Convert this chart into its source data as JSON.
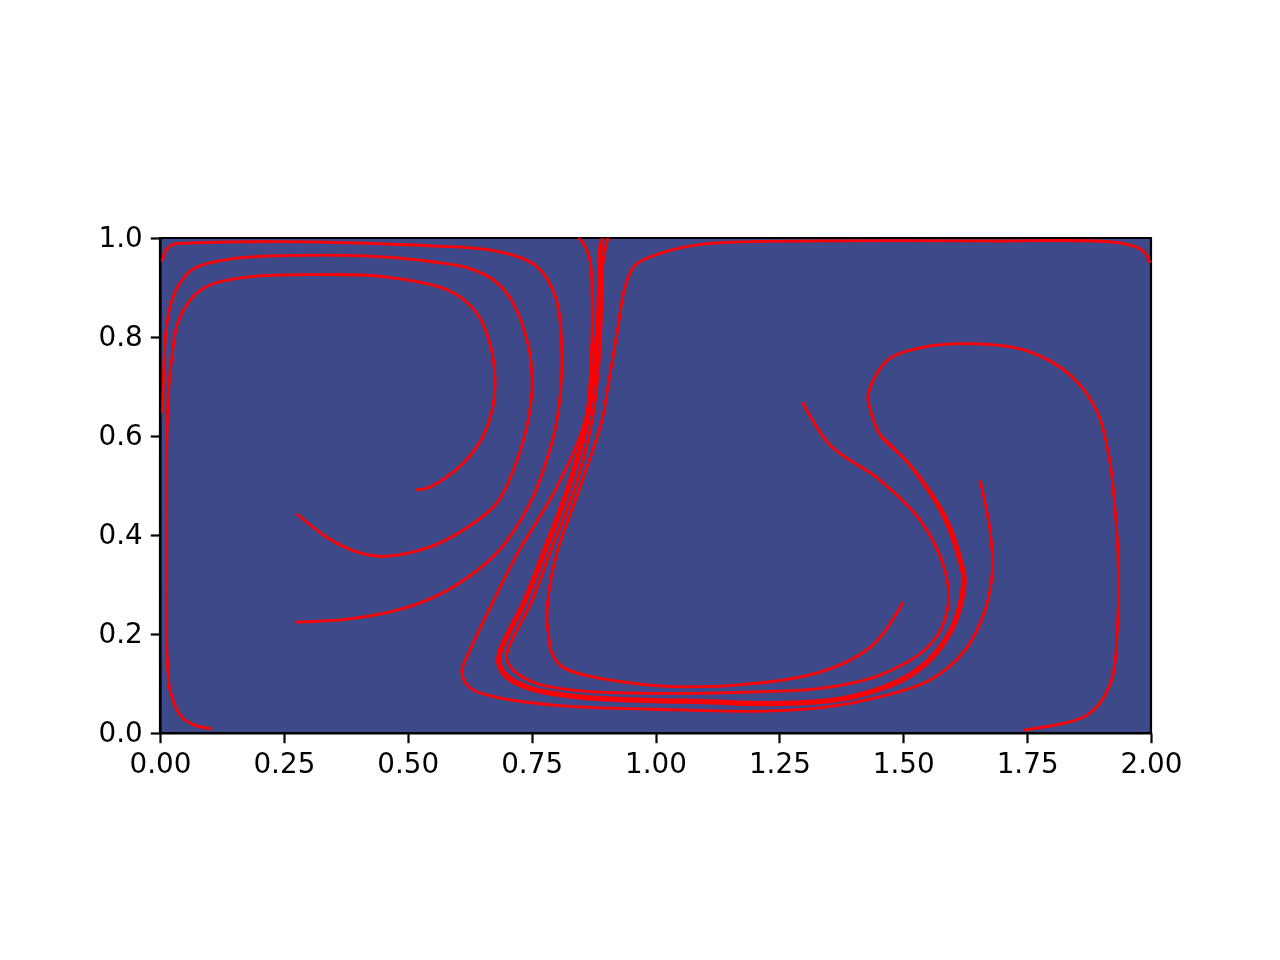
{
  "chart_data": {
    "type": "line",
    "xlim": [
      0,
      2
    ],
    "ylim": [
      0,
      1
    ],
    "xticks": [
      {
        "value": 0,
        "label": "0.00"
      },
      0.25,
      {
        "value": 0.5,
        "label": "0.50"
      },
      0.75,
      {
        "value": 1,
        "label": "1.00"
      },
      1.25,
      {
        "value": 1.5,
        "label": "1.50"
      },
      1.75,
      {
        "value": 2,
        "label": "2.00"
      }
    ],
    "yticks": [
      {
        "value": 0,
        "label": "0.0"
      },
      0.2,
      0.4,
      0.6,
      0.8,
      {
        "value": 1,
        "label": "1.0"
      }
    ],
    "grid": false,
    "line_style": "solid",
    "series": [
      {
        "color": "#ff0000",
        "x": [
          0.004,
          0.013,
          0.026,
          0.07,
          0.145,
          0.3,
          0.45,
          0.55,
          0.676,
          0.757,
          0.797,
          0.811,
          0.801,
          0.78,
          0.747,
          0.68,
          0.595,
          0.533,
          0.471,
          0.378,
          0.273
        ],
        "values": [
          0.953,
          0.977,
          0.987,
          0.99,
          0.992,
          0.992,
          0.988,
          0.984,
          0.974,
          0.945,
          0.885,
          0.764,
          0.632,
          0.55,
          0.465,
          0.364,
          0.297,
          0.266,
          0.246,
          0.23,
          0.224
        ]
      },
      {
        "color": "#ff0000",
        "x": [
          0.005,
          0.007,
          0.009,
          0.013,
          0.02,
          0.035,
          0.066,
          0.145,
          0.3,
          0.45,
          0.55,
          0.62,
          0.676,
          0.71,
          0.743,
          0.751,
          0.743,
          0.72,
          0.68,
          0.612,
          0.545,
          0.45,
          0.394,
          0.339,
          0.276
        ],
        "values": [
          0.646,
          0.72,
          0.768,
          0.82,
          0.86,
          0.9,
          0.937,
          0.958,
          0.965,
          0.962,
          0.952,
          0.94,
          0.913,
          0.873,
          0.784,
          0.703,
          0.632,
          0.55,
          0.465,
          0.41,
          0.376,
          0.357,
          0.367,
          0.394,
          0.443
        ]
      },
      {
        "color": "#ff0000",
        "x": [
          0.515,
          0.545,
          0.612,
          0.652,
          0.672,
          0.676,
          0.665,
          0.638,
          0.585,
          0.45,
          0.301,
          0.184,
          0.106,
          0.068,
          0.036,
          0.025,
          0.017,
          0.013,
          0.013,
          0.013,
          0.015,
          0.021,
          0.044,
          0.07,
          0.103
        ],
        "values": [
          0.491,
          0.497,
          0.545,
          0.6,
          0.66,
          0.717,
          0.79,
          0.85,
          0.893,
          0.922,
          0.926,
          0.922,
          0.907,
          0.883,
          0.829,
          0.768,
          0.689,
          0.533,
          0.35,
          0.222,
          0.14,
          0.083,
          0.032,
          0.016,
          0.009
        ]
      },
      {
        "color": "#ff0000",
        "x": [
          0.844,
          0.854,
          0.868,
          0.872,
          0.87,
          0.858,
          0.801,
          0.722,
          0.672,
          0.626,
          0.609,
          0.626,
          0.676,
          0.8,
          0.993,
          1.251,
          1.403,
          1.554,
          1.625,
          1.665,
          1.68,
          1.675,
          1.655
        ],
        "values": [
          1.0,
          0.99,
          0.954,
          0.885,
          0.752,
          0.632,
          0.497,
          0.364,
          0.265,
          0.168,
          0.123,
          0.091,
          0.073,
          0.056,
          0.048,
          0.045,
          0.062,
          0.107,
          0.168,
          0.248,
          0.329,
          0.41,
          0.511
        ]
      },
      {
        "color": "#ff0000",
        "x": [
          1.998,
          1.984,
          1.937,
          1.669,
          1.332,
          1.1,
          1.013,
          0.959,
          0.938,
          0.924,
          0.904,
          0.892,
          0.848,
          0.801,
          0.784,
          0.781,
          0.784,
          0.79,
          0.81,
          0.858,
          1.06,
          1.332,
          1.439,
          1.5
        ],
        "values": [
          0.95,
          0.974,
          0.99,
          0.994,
          0.994,
          0.988,
          0.97,
          0.945,
          0.899,
          0.818,
          0.7,
          0.632,
          0.497,
          0.364,
          0.28,
          0.228,
          0.2,
          0.164,
          0.135,
          0.117,
          0.093,
          0.123,
          0.178,
          0.265
        ]
      },
      {
        "color": "#ff0000",
        "x": [
          1.297,
          1.352,
          1.453,
          1.534,
          1.584,
          1.589,
          1.554,
          1.453,
          1.332,
          1.2,
          1.0,
          0.85,
          0.76,
          0.715,
          0.7,
          0.702,
          0.752,
          0.787,
          0.838,
          0.872,
          0.886,
          0.891,
          0.894,
          0.904
        ],
        "values": [
          0.668,
          0.582,
          0.511,
          0.43,
          0.329,
          0.248,
          0.178,
          0.117,
          0.09,
          0.083,
          0.08,
          0.085,
          0.1,
          0.125,
          0.148,
          0.168,
          0.27,
          0.364,
          0.497,
          0.632,
          0.75,
          0.85,
          0.95,
          1.0
        ]
      },
      {
        "color": "#ff0000",
        "x": [
          1.742,
          1.871,
          1.917,
          1.933,
          1.933,
          1.923,
          1.917,
          1.891,
          1.837,
          1.75,
          1.649,
          1.534,
          1.467,
          1.429,
          1.433,
          1.455,
          1.504,
          1.55,
          1.584,
          1.612,
          1.62,
          1.594,
          1.524,
          1.403,
          1.251,
          1.1,
          1.0,
          0.85,
          0.75,
          0.7,
          0.686,
          0.69,
          0.74,
          0.777,
          0.827,
          0.864,
          0.88,
          0.886,
          0.889,
          0.892
        ],
        "values": [
          0.006,
          0.036,
          0.097,
          0.232,
          0.366,
          0.501,
          0.549,
          0.65,
          0.723,
          0.772,
          0.786,
          0.778,
          0.752,
          0.683,
          0.655,
          0.6,
          0.552,
          0.49,
          0.43,
          0.35,
          0.309,
          0.208,
          0.127,
          0.077,
          0.062,
          0.066,
          0.068,
          0.075,
          0.092,
          0.118,
          0.145,
          0.168,
          0.27,
          0.364,
          0.497,
          0.632,
          0.75,
          0.85,
          0.95,
          1.0
        ]
      },
      {
        "color": "#ff0000",
        "x": [
          1.455,
          1.508,
          1.555,
          1.589,
          1.617,
          1.625,
          1.598,
          1.527,
          1.403,
          1.251,
          1.1,
          1.0,
          0.85,
          0.745,
          0.695,
          0.681,
          0.685,
          0.735,
          0.772,
          0.822,
          0.86,
          0.876,
          0.883,
          0.886,
          0.888
        ],
        "values": [
          0.6,
          0.548,
          0.488,
          0.43,
          0.35,
          0.305,
          0.205,
          0.122,
          0.072,
          0.057,
          0.061,
          0.063,
          0.07,
          0.088,
          0.115,
          0.145,
          0.168,
          0.27,
          0.364,
          0.497,
          0.632,
          0.75,
          0.85,
          0.95,
          0.99
        ]
      }
    ]
  }
}
